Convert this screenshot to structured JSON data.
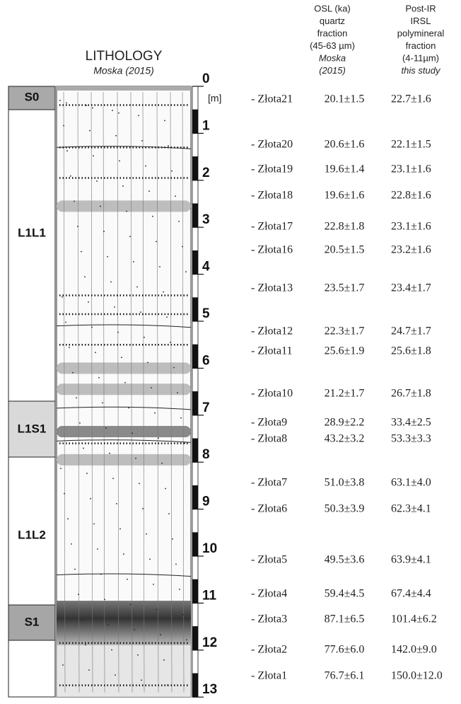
{
  "lithology_header": {
    "title": "LITHOLOGY",
    "source": "Moska (2015)"
  },
  "units": [
    "S0",
    "L1L1",
    "L1S1",
    "L1L2",
    "S1"
  ],
  "depth_scale": {
    "labels": [
      0,
      1,
      2,
      3,
      4,
      5,
      6,
      7,
      8,
      9,
      10,
      11,
      12,
      13
    ],
    "unit": "[m]"
  },
  "columns": {
    "osl": [
      "OSL (ka)",
      "quartz",
      "fraction",
      "(45-63 µm)",
      "Moska",
      "(2015)"
    ],
    "pir": [
      "Post-IR",
      "IRSL",
      "polymineral",
      "fraction",
      "(4-11µm)",
      "this study"
    ]
  },
  "samples": [
    {
      "name": "- Złota21",
      "osl": "20.1±1.5",
      "pir": "22.7±1.6"
    },
    {
      "name": "- Złota20",
      "osl": "20.6±1.6",
      "pir": "22.1±1.5"
    },
    {
      "name": "- Złota19",
      "osl": "19.6±1.4",
      "pir": "23.1±1.6"
    },
    {
      "name": "- Złota18",
      "osl": "19.6±1.6",
      "pir": "22.8±1.6"
    },
    {
      "name": "- Złota17",
      "osl": "22.8±1.8",
      "pir": "23.1±1.6"
    },
    {
      "name": "- Złota16",
      "osl": "20.5±1.5",
      "pir": "23.2±1.6"
    },
    {
      "name": "- Złota13",
      "osl": "23.5±1.7",
      "pir": "23.4±1.7"
    },
    {
      "name": "- Złota12",
      "osl": "22.3±1.7",
      "pir": "24.7±1.7"
    },
    {
      "name": "- Złota11",
      "osl": "25.6±1.9",
      "pir": "25.6±1.8"
    },
    {
      "name": "- Złota10",
      "osl": "21.2±1.7",
      "pir": "26.7±1.8"
    },
    {
      "name": "- Złota9",
      "osl": "28.9±2.2",
      "pir": "33.4±2.5"
    },
    {
      "name": "- Złota8",
      "osl": "43.2±3.2",
      "pir": "53.3±3.3"
    },
    {
      "name": "- Złota7",
      "osl": "51.0±3.8",
      "pir": "63.1±4.0"
    },
    {
      "name": "- Złota6",
      "osl": "50.3±3.9",
      "pir": "62.3±4.1"
    },
    {
      "name": "- Złota5",
      "osl": "49.5±3.6",
      "pir": "63.9±4.1"
    },
    {
      "name": "- Złota4",
      "osl": "59.4±4.5",
      "pir": "67.4±4.4"
    },
    {
      "name": "- Złota3",
      "osl": "87.1±6.5",
      "pir": "101.4±6.2"
    },
    {
      "name": "- Złota2",
      "osl": "77.6±6.0",
      "pir": "142.0±9.0"
    },
    {
      "name": "- Złota1",
      "osl": "76.7±6.1",
      "pir": "150.0±12.0"
    }
  ]
}
